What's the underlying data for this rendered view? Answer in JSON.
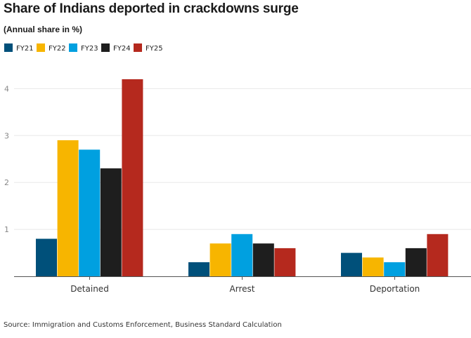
{
  "chart_data": {
    "type": "bar",
    "title": "Share of Indians deported in crackdowns surge",
    "subtitle": "(Annual share in %)",
    "source": "Source: Immigration and Customs Enforcement, Business Standard Calculation",
    "categories": [
      "Detained",
      "Arrest",
      "Deportation"
    ],
    "series": [
      {
        "name": "FY21",
        "color": "#00507a",
        "values": [
          0.8,
          0.3,
          0.5
        ]
      },
      {
        "name": "FY22",
        "color": "#f7b500",
        "values": [
          2.9,
          0.7,
          0.4
        ]
      },
      {
        "name": "FY23",
        "color": "#00a0e0",
        "values": [
          2.7,
          0.9,
          0.3
        ]
      },
      {
        "name": "FY24",
        "color": "#1e1e1e",
        "values": [
          2.3,
          0.7,
          0.6
        ]
      },
      {
        "name": "FY25",
        "color": "#b5291e",
        "values": [
          4.2,
          0.6,
          0.9
        ]
      }
    ],
    "yticks": [
      1,
      2,
      3,
      4
    ],
    "ylim": [
      0,
      4.8
    ],
    "grid": true,
    "legend": "top-left"
  }
}
